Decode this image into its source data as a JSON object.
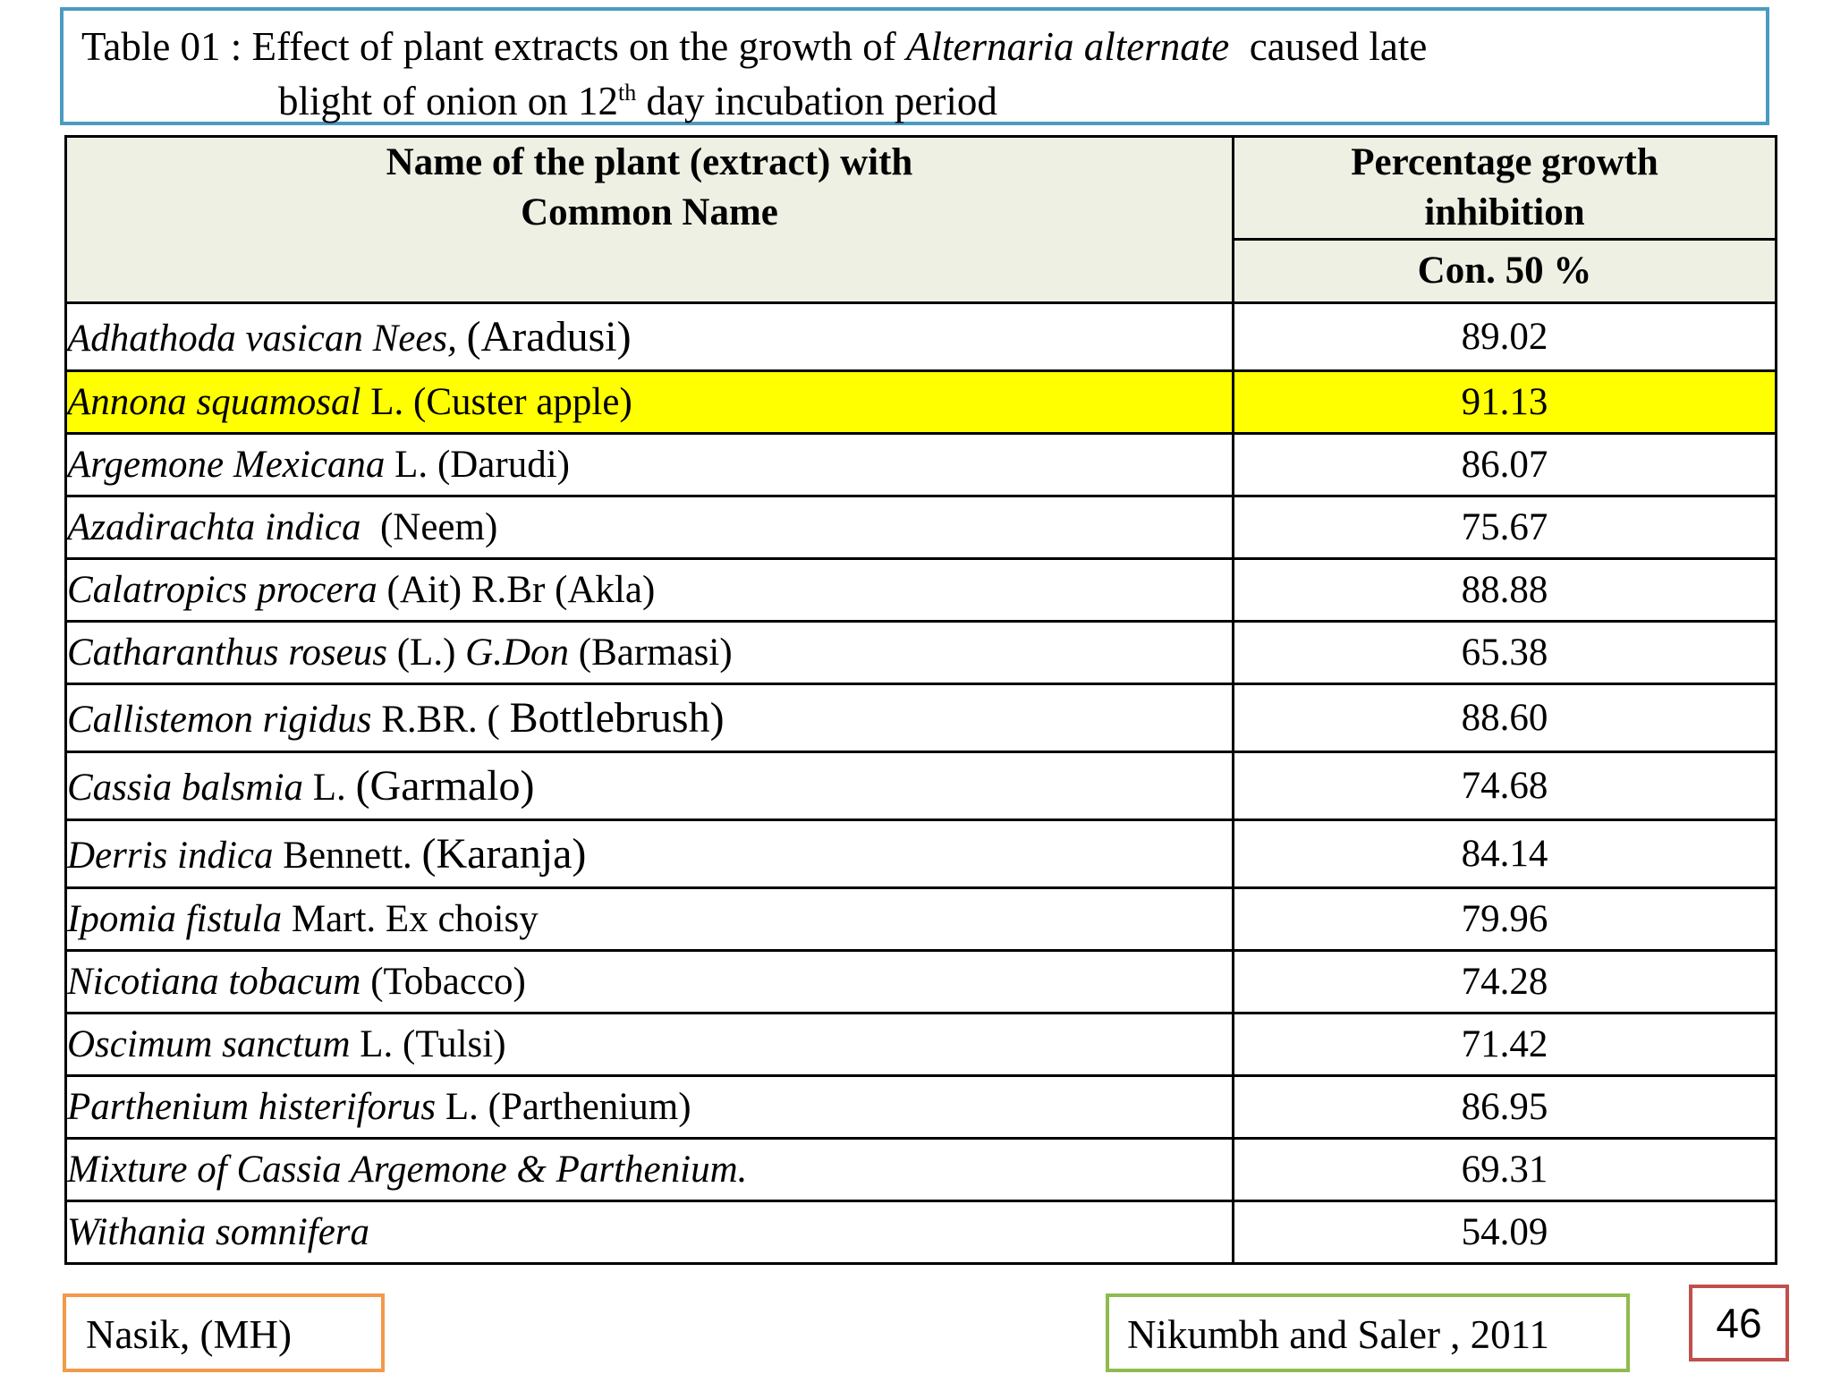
{
  "title": {
    "prefix": "Table 01 : Effect of plant extracts on the growth of ",
    "organism": "Alternaria alternate",
    "suffix": "  caused late",
    "line2_before": "blight of onion on 12",
    "line2_sup": "th",
    "line2_after": " day incubation period"
  },
  "table": {
    "header_name_line1": "Name of the plant (extract) with",
    "header_name_line2": "Common Name",
    "header_value_line1": "Percentage growth",
    "header_value_line2": "inhibition",
    "header_sub": "Con. 50 %",
    "rows": [
      {
        "sci": "Adhathoda vasican Nees,",
        "mid": " ",
        "common": "(Aradusi)",
        "value": "89.02"
      },
      {
        "sci": "Annona squamosal",
        "mid": " L. ",
        "common": "(Custer apple)",
        "value": "91.13"
      },
      {
        "sci": "Argemone Mexicana",
        "mid": " L. ",
        "common": "(Darudi)",
        "value": "86.07"
      },
      {
        "sci": "Azadirachta indica",
        "mid": "  ",
        "common": "(Neem)",
        "value": "75.67"
      },
      {
        "sci": "Calatropics procera",
        "mid": " (Ait) R.Br ",
        "common": "(Akla)",
        "value": "88.88"
      },
      {
        "sci": "Catharanthus roseus",
        "mid": " (L.) ",
        "sci2": "G.Don",
        "common": " (Barmasi)",
        "value": "65.38"
      },
      {
        "sci": "Callistemon rigidus",
        "mid": " R.BR. ( ",
        "common": "Bottlebrush)",
        "value": "88.60"
      },
      {
        "sci": "Cassia balsmia",
        "mid": " L. ",
        "common": "(Garmalo)",
        "value": "74.68"
      },
      {
        "sci": "Derris indica",
        "mid": " Bennett. ",
        "common": "(Karanja)",
        "value": "84.14"
      },
      {
        "sci": "Ipomia fistula",
        "mid": " Mart. Ex choisy",
        "common": "",
        "value": "79.96"
      },
      {
        "sci": "Nicotiana tobacum",
        "mid": " ",
        "common": "(Tobacco)",
        "value": "74.28"
      },
      {
        "sci": "Oscimum sanctum",
        "mid": " L. ",
        "common": "(Tulsi)",
        "value": "71.42"
      },
      {
        "sci": "Parthenium histeriforus",
        "mid": " L. ",
        "common": "(Parthenium)",
        "value": "86.95"
      },
      {
        "sci": "Mixture of Cassia Argemone & Parthenium.",
        "mid": "",
        "common": "",
        "value": "69.31"
      },
      {
        "sci": "Withania somnifera",
        "mid": "",
        "common": "",
        "value": "54.09"
      }
    ]
  },
  "footer": {
    "location": "Nasik, (MH)",
    "citation": "Nikumbh and Saler , 2011",
    "page_number": "46"
  },
  "colors": {
    "title_border": "#4a9bc1",
    "header_bg": "#eef0e4",
    "highlight": "#ffff00",
    "location_border": "#f29a4a",
    "citation_border": "#8fbb4e",
    "page_border": "#c0504d"
  }
}
